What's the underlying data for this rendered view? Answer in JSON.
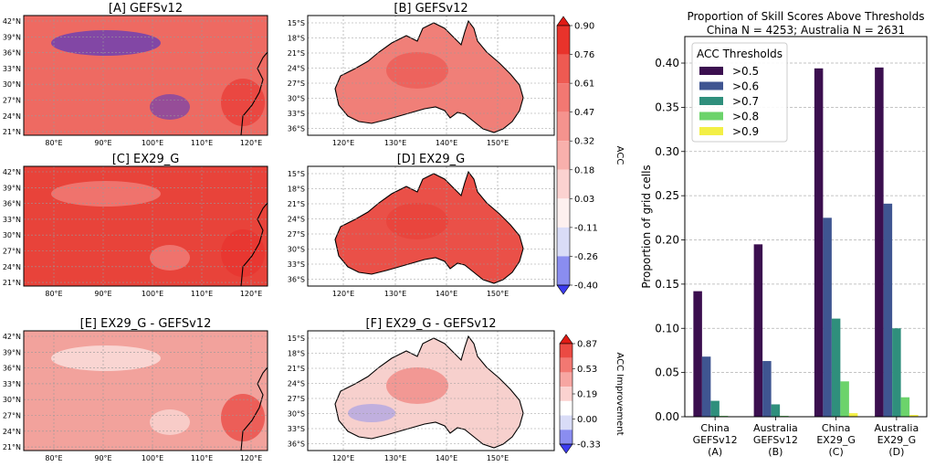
{
  "colors": {
    "c05": "#3b0f4f",
    "c06": "#3f5591",
    "c07": "#2f8f7c",
    "c08": "#6cd36b",
    "c09": "#f3ef45",
    "map_high": "#e8312c",
    "map_mid": "#f4a3a0",
    "map_low": "#2a2adc"
  },
  "china_lat_ticks": [
    "42°N",
    "39°N",
    "36°N",
    "33°N",
    "30°N",
    "27°N",
    "24°N",
    "21°N"
  ],
  "china_lon_ticks": [
    "80°E",
    "90°E",
    "100°E",
    "110°E",
    "120°E"
  ],
  "aus_lat_ticks": [
    "15°S",
    "18°S",
    "21°S",
    "24°S",
    "27°S",
    "30°S",
    "33°S",
    "36°S"
  ],
  "aus_lon_ticks": [
    "120°E",
    "130°E",
    "140°E",
    "150°E"
  ],
  "map_panels": [
    {
      "id": "A",
      "title": "[A] GEFSv12",
      "region": "china",
      "fill": "#ee6a62",
      "row": 0,
      "col": 0
    },
    {
      "id": "B",
      "title": "[B] GEFSv12",
      "region": "aus",
      "fill": "#f07f78",
      "row": 0,
      "col": 1
    },
    {
      "id": "C",
      "title": "[C] EX29_G",
      "region": "china",
      "fill": "#e8433a",
      "row": 1,
      "col": 0
    },
    {
      "id": "D",
      "title": "[D] EX29_G",
      "region": "aus",
      "fill": "#ea5048",
      "row": 1,
      "col": 1
    },
    {
      "id": "E",
      "title": "[E] EX29_G - GEFSv12",
      "region": "china",
      "fill": "#f2a29c",
      "row": 2,
      "col": 0
    },
    {
      "id": "F",
      "title": "[F] EX29_G - GEFSv12",
      "region": "aus",
      "fill": "#f7d0cd",
      "row": 2,
      "col": 1
    }
  ],
  "colorbars": [
    {
      "label": "ACC",
      "ticks": [
        "0.90",
        "0.76",
        "0.61",
        "0.47",
        "0.32",
        "0.18",
        "0.03",
        "-0.11",
        "-0.26",
        "-0.40"
      ],
      "colors": [
        "#e01b15",
        "#e8332b",
        "#ee5a52",
        "#f27872",
        "#f5938e",
        "#f8b0ac",
        "#fbd2d0",
        "#fdf0ef",
        "#d9dcf7",
        "#8a8df0",
        "#3c3cf0"
      ]
    },
    {
      "label": "ACC Improvement",
      "ticks": [
        "0.87",
        "0.53",
        "0.19",
        "0.00",
        "-0.33"
      ],
      "colors": [
        "#e01b15",
        "#eb4a43",
        "#f27872",
        "#f7a6a2",
        "#fbd2d0",
        "#ffffff",
        "#d9dcf7",
        "#8a8df0",
        "#3c3cf0"
      ]
    }
  ],
  "chart_data": {
    "type": "bar",
    "title": "Proportion of Skill Scores Above Thresholds",
    "subtitle": "China N = 4253; Australia N = 2631",
    "ylabel": "Proportion of grid cells",
    "xlabel": "",
    "ylim": [
      0,
      0.43
    ],
    "yticks": [
      "0.00",
      "0.05",
      "0.10",
      "0.15",
      "0.20",
      "0.25",
      "0.30",
      "0.35",
      "0.40"
    ],
    "grid": true,
    "legend_title": "ACC Thresholds",
    "legend_position": "top-left",
    "categories": [
      [
        "China",
        "GEFSv12",
        "(A)"
      ],
      [
        "Australia",
        "GEFSv12",
        "(B)"
      ],
      [
        "China",
        "EX29_G",
        "(C)"
      ],
      [
        "Australia",
        "EX29_G",
        "(D)"
      ]
    ],
    "series": [
      {
        "name": ">0.5",
        "values": [
          0.142,
          0.195,
          0.394,
          0.395
        ]
      },
      {
        "name": ">0.6",
        "values": [
          0.068,
          0.063,
          0.225,
          0.241
        ]
      },
      {
        "name": ">0.7",
        "values": [
          0.018,
          0.014,
          0.111,
          0.1
        ]
      },
      {
        "name": ">0.8",
        "values": [
          0.001,
          0.001,
          0.04,
          0.022
        ]
      },
      {
        "name": ">0.9",
        "values": [
          0.0,
          0.0,
          0.004,
          0.002
        ]
      }
    ]
  }
}
